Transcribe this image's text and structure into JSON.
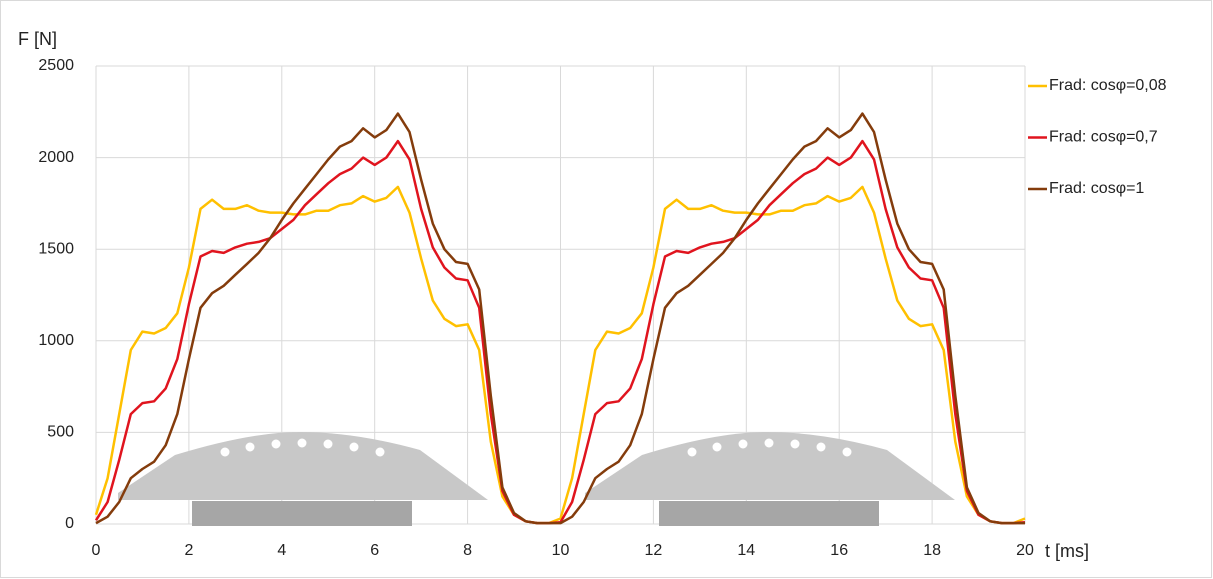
{
  "chart_data": {
    "type": "line",
    "y_label": "F [N]",
    "x_label": "t [ms]",
    "x": [
      0,
      0.25,
      0.5,
      0.75,
      1,
      1.25,
      1.5,
      1.75,
      2,
      2.25,
      2.5,
      2.75,
      3,
      3.25,
      3.5,
      3.75,
      4,
      4.25,
      4.5,
      4.75,
      5,
      5.25,
      5.5,
      5.75,
      6,
      6.25,
      6.5,
      6.75,
      7,
      7.25,
      7.5,
      7.75,
      8,
      8.25,
      8.5,
      8.75,
      9,
      9.25,
      9.5,
      9.75,
      10,
      10.25,
      10.5,
      10.75,
      11,
      11.25,
      11.5,
      11.75,
      12,
      12.25,
      12.5,
      12.75,
      13,
      13.25,
      13.5,
      13.75,
      14,
      14.25,
      14.5,
      14.75,
      15,
      15.25,
      15.5,
      15.75,
      16,
      16.25,
      16.5,
      16.75,
      17,
      17.25,
      17.5,
      17.75,
      18,
      18.25,
      18.5,
      18.75,
      19,
      19.25,
      19.5,
      19.75,
      20
    ],
    "series": [
      {
        "name": "Frad: cosφ=0,08",
        "color": "#ffc000",
        "values": [
          50,
          250,
          600,
          950,
          1050,
          1040,
          1070,
          1150,
          1400,
          1720,
          1770,
          1720,
          1720,
          1740,
          1710,
          1700,
          1700,
          1690,
          1690,
          1710,
          1710,
          1740,
          1750,
          1790,
          1760,
          1780,
          1840,
          1700,
          1450,
          1220,
          1120,
          1080,
          1090,
          950,
          450,
          150,
          50,
          15,
          5,
          5,
          30,
          250,
          600,
          950,
          1050,
          1040,
          1070,
          1150,
          1400,
          1720,
          1770,
          1720,
          1720,
          1740,
          1710,
          1700,
          1700,
          1690,
          1690,
          1710,
          1710,
          1740,
          1750,
          1790,
          1760,
          1780,
          1840,
          1700,
          1450,
          1220,
          1120,
          1080,
          1090,
          950,
          450,
          150,
          50,
          15,
          5,
          5,
          30
        ]
      },
      {
        "name": "Frad: cosφ=0,7",
        "color": "#e0141e",
        "values": [
          20,
          120,
          350,
          600,
          660,
          670,
          740,
          900,
          1200,
          1460,
          1490,
          1480,
          1510,
          1530,
          1540,
          1560,
          1610,
          1660,
          1740,
          1800,
          1860,
          1910,
          1940,
          2000,
          1960,
          2000,
          2090,
          1990,
          1720,
          1510,
          1400,
          1340,
          1330,
          1180,
          600,
          180,
          50,
          15,
          5,
          5,
          10,
          120,
          350,
          600,
          660,
          670,
          740,
          900,
          1200,
          1460,
          1490,
          1480,
          1510,
          1530,
          1540,
          1560,
          1610,
          1660,
          1740,
          1800,
          1860,
          1910,
          1940,
          2000,
          1960,
          2000,
          2090,
          1990,
          1720,
          1510,
          1400,
          1340,
          1330,
          1180,
          600,
          180,
          50,
          15,
          5,
          5,
          10
        ]
      },
      {
        "name": "Frad: cosφ=1",
        "color": "#843c0c",
        "values": [
          5,
          40,
          120,
          250,
          300,
          340,
          430,
          600,
          900,
          1180,
          1260,
          1300,
          1360,
          1420,
          1480,
          1560,
          1660,
          1750,
          1830,
          1910,
          1990,
          2060,
          2090,
          2160,
          2110,
          2150,
          2240,
          2140,
          1880,
          1640,
          1500,
          1430,
          1420,
          1280,
          700,
          200,
          60,
          15,
          5,
          5,
          5,
          40,
          120,
          250,
          300,
          340,
          430,
          600,
          900,
          1180,
          1260,
          1300,
          1360,
          1420,
          1480,
          1560,
          1660,
          1750,
          1830,
          1910,
          1990,
          2060,
          2090,
          2160,
          2110,
          2150,
          2240,
          2140,
          1880,
          1640,
          1500,
          1430,
          1420,
          1280,
          700,
          200,
          60,
          15,
          5,
          5,
          5
        ]
      }
    ],
    "xlim": [
      0,
      20
    ],
    "xticks": [
      0,
      2,
      4,
      6,
      8,
      10,
      12,
      14,
      16,
      18,
      20
    ],
    "ylim": [
      0,
      2500
    ],
    "yticks": [
      0,
      500,
      1000,
      1500,
      2000,
      2500
    ],
    "grid": true,
    "legend": "right"
  }
}
